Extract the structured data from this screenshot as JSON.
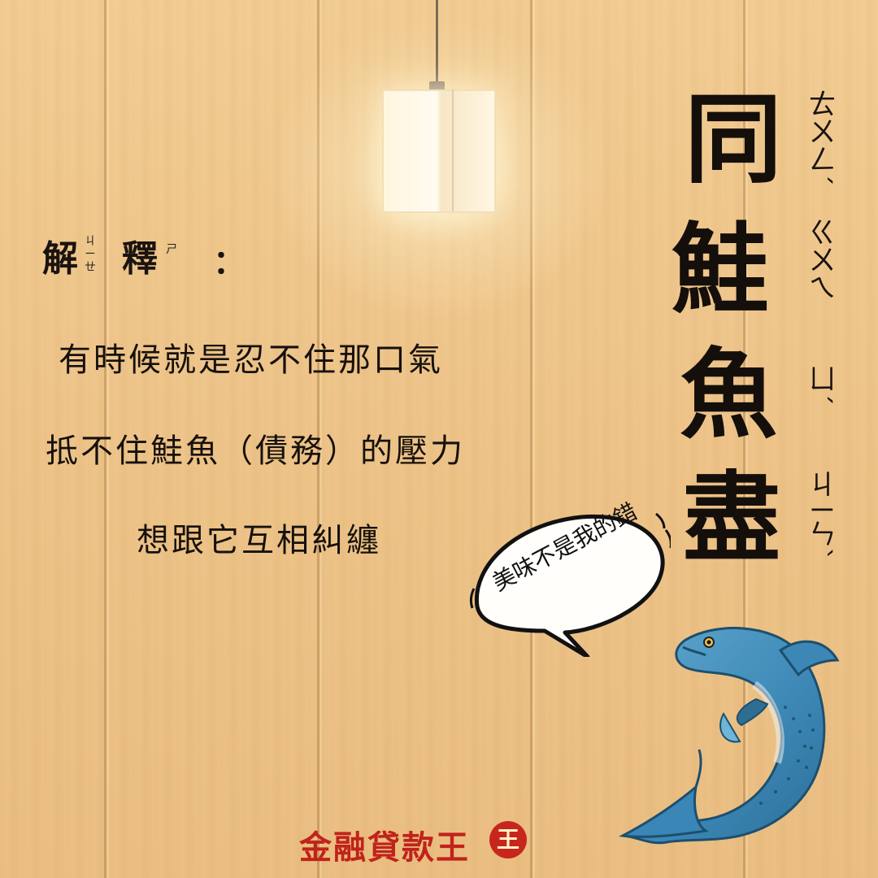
{
  "explanation": {
    "char1": "解",
    "char1_zhuyin_a": "ㄐ",
    "char1_zhuyin_b": "ㄧ",
    "char1_zhuyin_c": "ㄝ",
    "char2": "釋",
    "char2_zhuyin": "ㄕ",
    "colon": "："
  },
  "body_lines": [
    "有時候就是忍不住那口氣",
    "抵不住鮭魚（債務）的壓力",
    "想跟它互相糾纏"
  ],
  "title": {
    "chars": [
      "同",
      "鮭",
      "魚",
      "盡"
    ],
    "zhuyin": [
      "ㄊㄨㄥˊ",
      "ㄍㄨㄟ",
      "ㄩˊ",
      "ㄐㄧㄣˋ"
    ]
  },
  "speech_bubble": "美味不是我的錯",
  "brand": {
    "name": "金融貸款王",
    "badge": "王",
    "color": "#c7261c"
  },
  "icons": [
    "pendant-lamp-icon",
    "salmon-illustration",
    "speech-bubble-icon"
  ]
}
